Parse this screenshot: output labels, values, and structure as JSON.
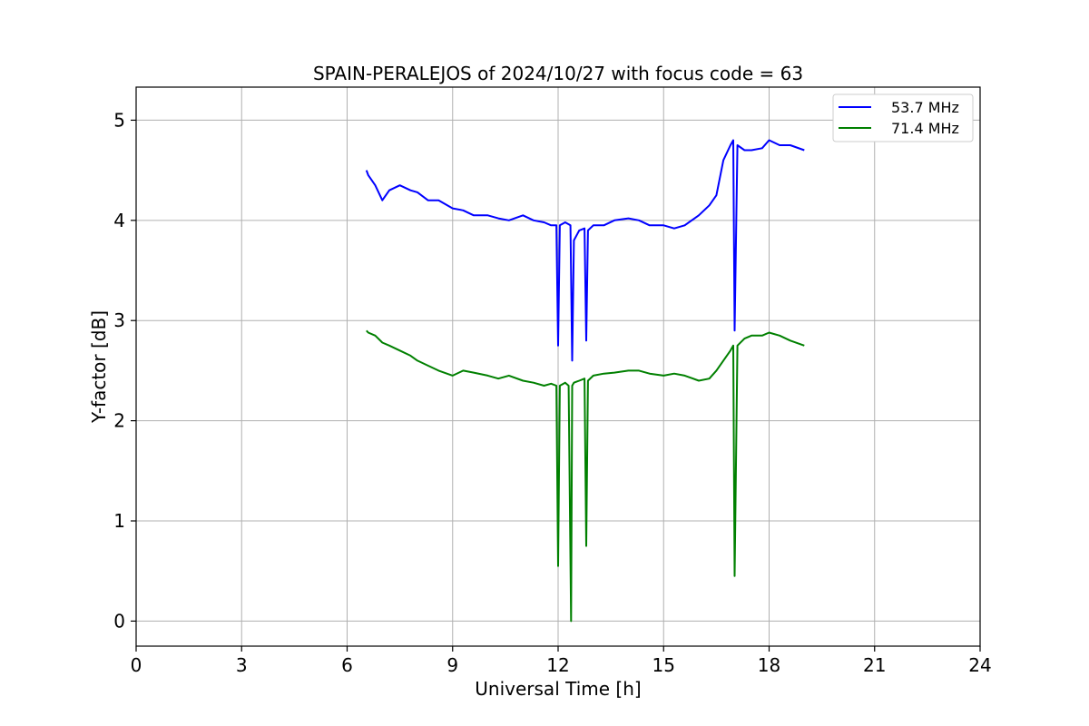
{
  "chart_data": {
    "type": "line",
    "title": "SPAIN-PERALEJOS of 2024/10/27 with focus code = 63",
    "xlabel": "Universal Time [h]",
    "ylabel": "Y-factor [dB]",
    "xlim": [
      0,
      24
    ],
    "ylim": [
      -0.25,
      5.33
    ],
    "xticks": [
      "0",
      "3",
      "6",
      "9",
      "12",
      "15",
      "18",
      "21",
      "24"
    ],
    "yticks": [
      "0",
      "1",
      "2",
      "3",
      "4",
      "5"
    ],
    "grid": true,
    "legend_position": "top-right",
    "series": [
      {
        "name": "53.7 MHz",
        "color": "#0000ff",
        "x": [
          6.55,
          6.6,
          6.8,
          7.0,
          7.2,
          7.5,
          7.8,
          8.0,
          8.3,
          8.6,
          9.0,
          9.3,
          9.6,
          10.0,
          10.3,
          10.6,
          11.0,
          11.3,
          11.6,
          11.8,
          11.95,
          12.0,
          12.05,
          12.2,
          12.35,
          12.4,
          12.45,
          12.6,
          12.75,
          12.8,
          12.85,
          13.0,
          13.3,
          13.6,
          14.0,
          14.3,
          14.6,
          15.0,
          15.3,
          15.6,
          16.0,
          16.3,
          16.5,
          16.7,
          16.9,
          16.98,
          17.02,
          17.1,
          17.3,
          17.5,
          17.8,
          18.0,
          18.3,
          18.6,
          19.0
        ],
        "y": [
          4.5,
          4.45,
          4.35,
          4.2,
          4.3,
          4.35,
          4.3,
          4.28,
          4.2,
          4.2,
          4.12,
          4.1,
          4.05,
          4.05,
          4.02,
          4.0,
          4.05,
          4.0,
          3.98,
          3.95,
          3.95,
          2.75,
          3.95,
          3.98,
          3.95,
          2.6,
          3.8,
          3.9,
          3.92,
          2.8,
          3.9,
          3.95,
          3.95,
          4.0,
          4.02,
          4.0,
          3.95,
          3.95,
          3.92,
          3.95,
          4.05,
          4.15,
          4.25,
          4.6,
          4.75,
          4.8,
          2.9,
          4.75,
          4.7,
          4.7,
          4.72,
          4.8,
          4.75,
          4.75,
          4.7
        ]
      },
      {
        "name": "71.4 MHz",
        "color": "#008000",
        "x": [
          6.55,
          6.6,
          6.8,
          7.0,
          7.2,
          7.5,
          7.8,
          8.0,
          8.3,
          8.6,
          9.0,
          9.3,
          9.6,
          10.0,
          10.3,
          10.6,
          11.0,
          11.3,
          11.6,
          11.8,
          11.95,
          12.0,
          12.05,
          12.2,
          12.3,
          12.37,
          12.4,
          12.45,
          12.6,
          12.75,
          12.8,
          12.85,
          13.0,
          13.3,
          13.6,
          14.0,
          14.3,
          14.6,
          15.0,
          15.3,
          15.6,
          16.0,
          16.3,
          16.5,
          16.7,
          16.9,
          16.98,
          17.02,
          17.1,
          17.3,
          17.5,
          17.8,
          18.0,
          18.3,
          18.6,
          19.0
        ],
        "y": [
          2.9,
          2.88,
          2.85,
          2.78,
          2.75,
          2.7,
          2.65,
          2.6,
          2.55,
          2.5,
          2.45,
          2.5,
          2.48,
          2.45,
          2.42,
          2.45,
          2.4,
          2.38,
          2.35,
          2.37,
          2.35,
          0.55,
          2.35,
          2.38,
          2.35,
          0.0,
          2.35,
          2.38,
          2.4,
          2.42,
          0.75,
          2.4,
          2.45,
          2.47,
          2.48,
          2.5,
          2.5,
          2.47,
          2.45,
          2.47,
          2.45,
          2.4,
          2.42,
          2.5,
          2.6,
          2.7,
          2.75,
          0.45,
          2.75,
          2.82,
          2.85,
          2.85,
          2.88,
          2.85,
          2.8,
          2.75
        ]
      }
    ]
  }
}
